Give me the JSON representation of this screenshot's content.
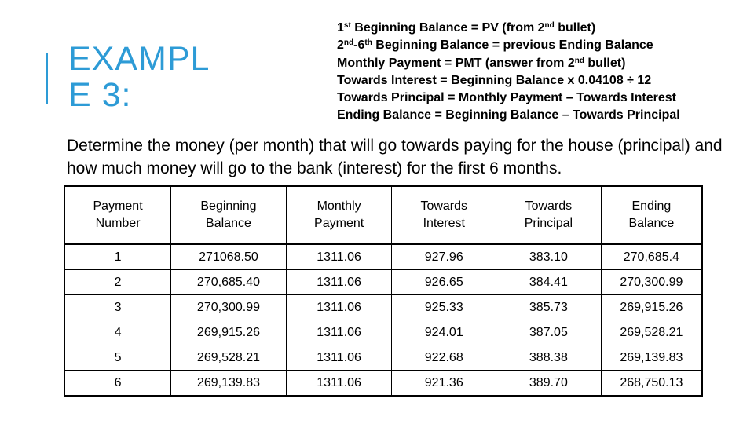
{
  "title": {
    "line1": "EXAMPL",
    "line2": "E 3:"
  },
  "notes": [
    {
      "ord": "1",
      "ord_sup": "st",
      "text": " Beginning Balance = PV (from 2",
      "sup2": "nd",
      "tail": " bullet)"
    },
    {
      "ord": "2",
      "ord_sup": "nd",
      "mid": "-6",
      "mid_sup": "th",
      "text": " Beginning Balance = previous Ending Balance"
    },
    {
      "text": "Monthly Payment = PMT (answer from 2",
      "sup": "nd",
      "tail": " bullet)"
    },
    {
      "text": "Towards Interest = Beginning Balance x 0.04108 ÷ 12"
    },
    {
      "text": "Towards Principal = Monthly Payment – Towards Interest"
    },
    {
      "text": "Ending Balance = Beginning Balance – Towards Principal"
    }
  ],
  "prompt": "Determine the money (per month) that will go towards paying for the house (principal) and how much money will go to the bank (interest) for the first 6 months.",
  "table": {
    "headers": [
      [
        "Payment",
        "Number"
      ],
      [
        "Beginning",
        "Balance"
      ],
      [
        "Monthly",
        "Payment"
      ],
      [
        "Towards",
        "Interest"
      ],
      [
        "Towards",
        "Principal"
      ],
      [
        "Ending",
        "Balance"
      ]
    ],
    "rows": [
      [
        "1",
        "271068.50",
        "1311.06",
        "927.96",
        "383.10",
        "270,685.4"
      ],
      [
        "2",
        "270,685.40",
        "1311.06",
        "926.65",
        "384.41",
        "270,300.99"
      ],
      [
        "3",
        "270,300.99",
        "1311.06",
        "925.33",
        "385.73",
        "269,915.26"
      ],
      [
        "4",
        "269,915.26",
        "1311.06",
        "924.01",
        "387.05",
        "269,528.21"
      ],
      [
        "5",
        "269,528.21",
        "1311.06",
        "922.68",
        "388.38",
        "269,139.83"
      ],
      [
        "6",
        "269,139.83",
        "1311.06",
        "921.36",
        "389.70",
        "268,750.13"
      ]
    ]
  },
  "colors": {
    "accent": "#2d9bd6",
    "text": "#000000",
    "background": "#ffffff"
  }
}
